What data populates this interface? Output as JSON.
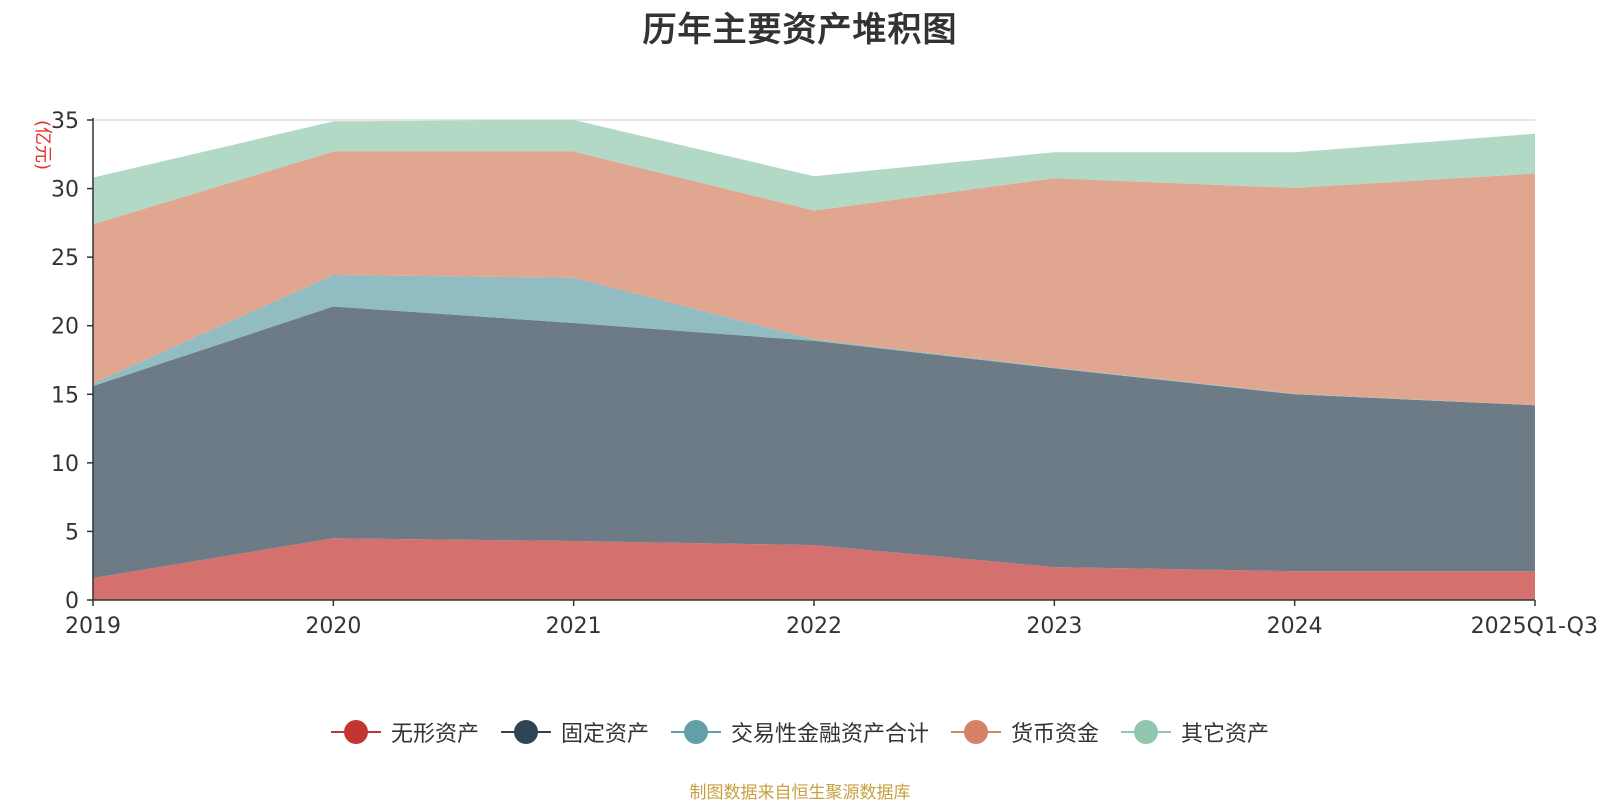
{
  "chart_data": {
    "type": "area",
    "stacked": true,
    "title": "历年主要资产堆积图",
    "ylabel": "(亿元)",
    "xlabel": "",
    "ylim": [
      0,
      35
    ],
    "yticks": [
      0,
      5,
      10,
      15,
      20,
      25,
      30,
      35
    ],
    "categories": [
      "2019",
      "2020",
      "2021",
      "2022",
      "2023",
      "2024",
      "2025Q1-Q3"
    ],
    "series": [
      {
        "name": "无形资产",
        "color": "#c23531",
        "fill": "#d4706d",
        "values": [
          1.6,
          4.5,
          4.3,
          4.0,
          2.4,
          2.1,
          2.1
        ]
      },
      {
        "name": "固定资产",
        "color": "#2f4554",
        "fill": "#6d7b86",
        "values": [
          14.0,
          16.9,
          15.9,
          14.9,
          14.5,
          12.9,
          12.1
        ]
      },
      {
        "name": "交易性金融资产合计",
        "color": "#61a0a8",
        "fill": "#90bcc2",
        "values": [
          0.2,
          2.3,
          3.3,
          0.1,
          0.05,
          0.05,
          0.0
        ]
      },
      {
        "name": "货币资金",
        "color": "#d48265",
        "fill": "#e0a690",
        "values": [
          11.6,
          9.0,
          9.2,
          9.4,
          13.8,
          15.0,
          16.9
        ]
      },
      {
        "name": "其它资产",
        "color": "#91c7ae",
        "fill": "#b2d8c6",
        "values": [
          3.4,
          2.2,
          2.3,
          2.5,
          1.9,
          2.6,
          2.9
        ]
      }
    ],
    "grid": true,
    "legend_position": "bottom-center"
  },
  "footer": {
    "source": "制图数据来自恒生聚源数据库"
  }
}
